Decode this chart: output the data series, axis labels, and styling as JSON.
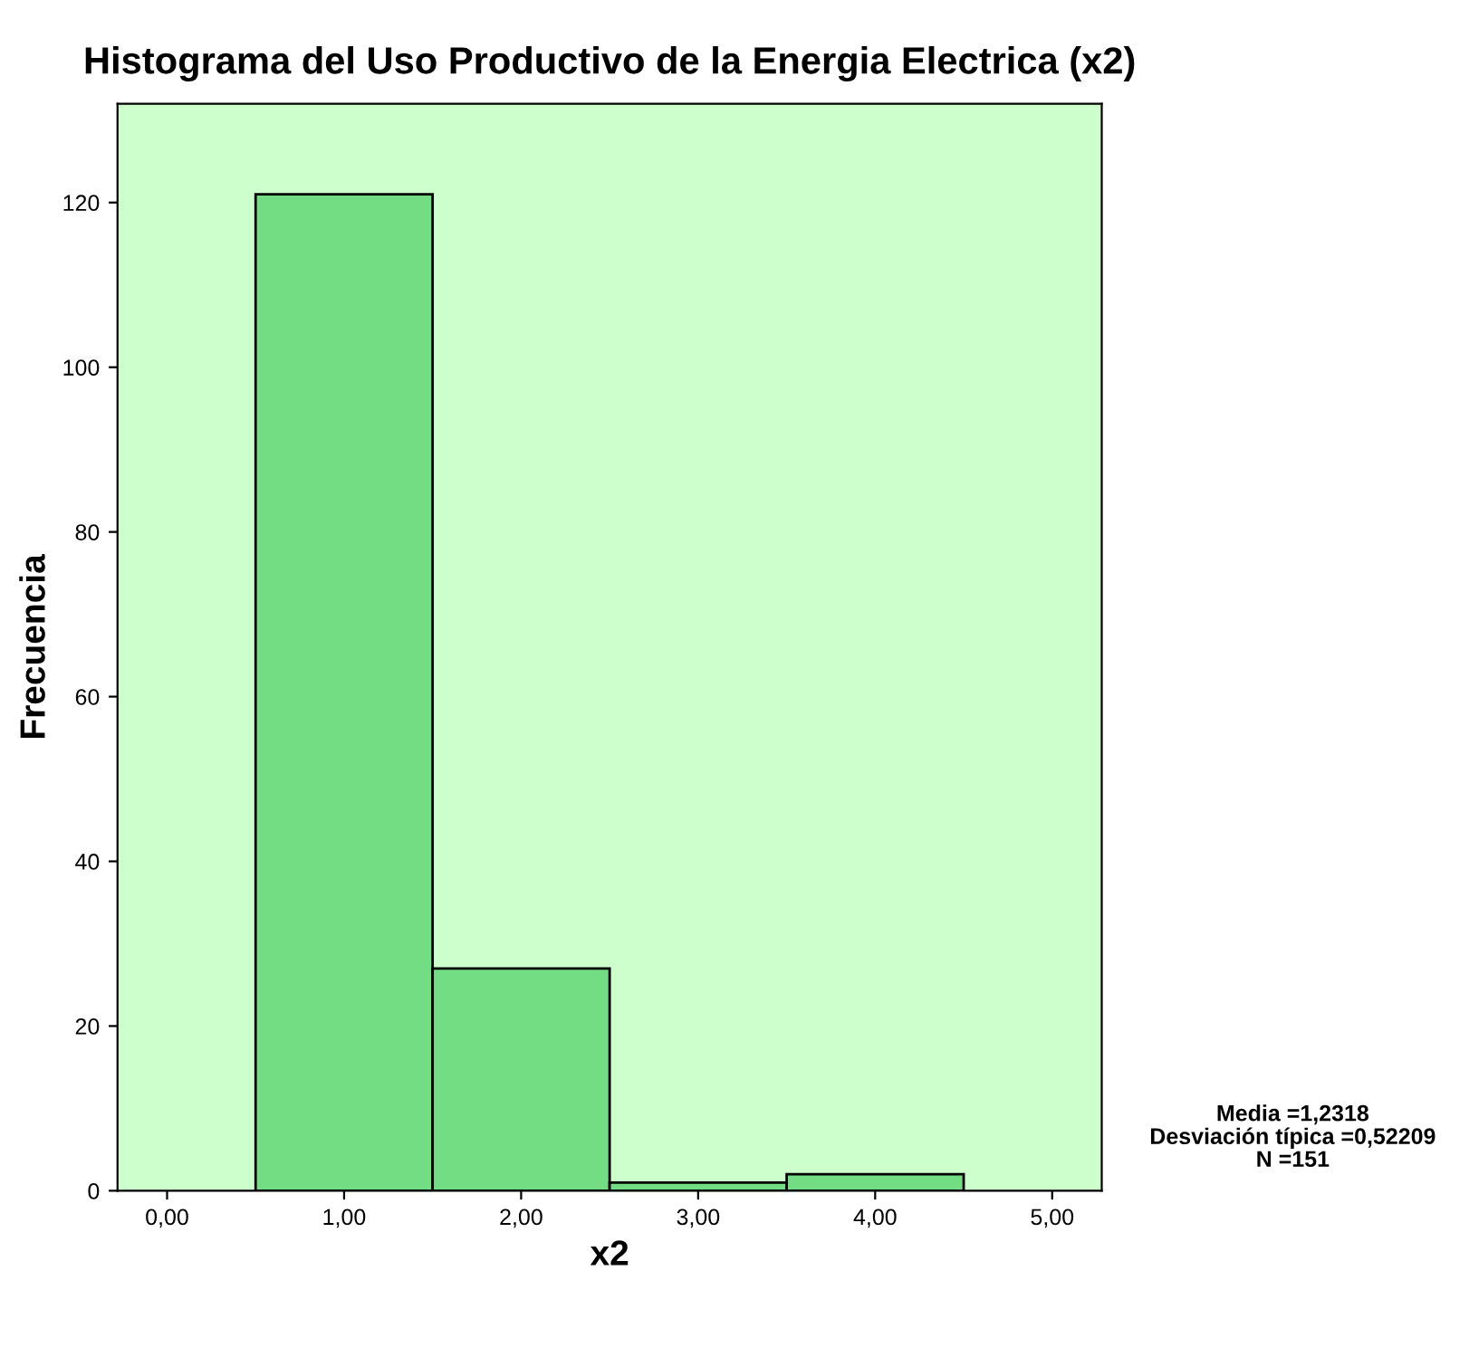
{
  "chart_data": {
    "type": "histogram",
    "title": "Histograma del Uso Productivo de la Energia Electrica (x2)",
    "xlabel": "x2",
    "ylabel": "Frecuencia",
    "bins": [
      0.5,
      1.5,
      2.5,
      3.5,
      4.5
    ],
    "values": [
      121,
      27,
      1,
      2
    ],
    "color": "#73dd83",
    "xlim": [
      -0.28,
      5.28
    ],
    "ylim": [
      0,
      132
    ],
    "xticks": [
      {
        "value": 0,
        "label": "0,00"
      },
      {
        "value": 1,
        "label": "1,00"
      },
      {
        "value": 2,
        "label": "2,00"
      },
      {
        "value": 3,
        "label": "3,00"
      },
      {
        "value": 4,
        "label": "4,00"
      },
      {
        "value": 5,
        "label": "5,00"
      }
    ],
    "yticks": [
      0,
      20,
      40,
      60,
      80,
      100,
      120
    ],
    "grid": false,
    "annotations": [
      "Media =1,2318",
      "Desviación típica =0,52209",
      "N =151"
    ]
  }
}
